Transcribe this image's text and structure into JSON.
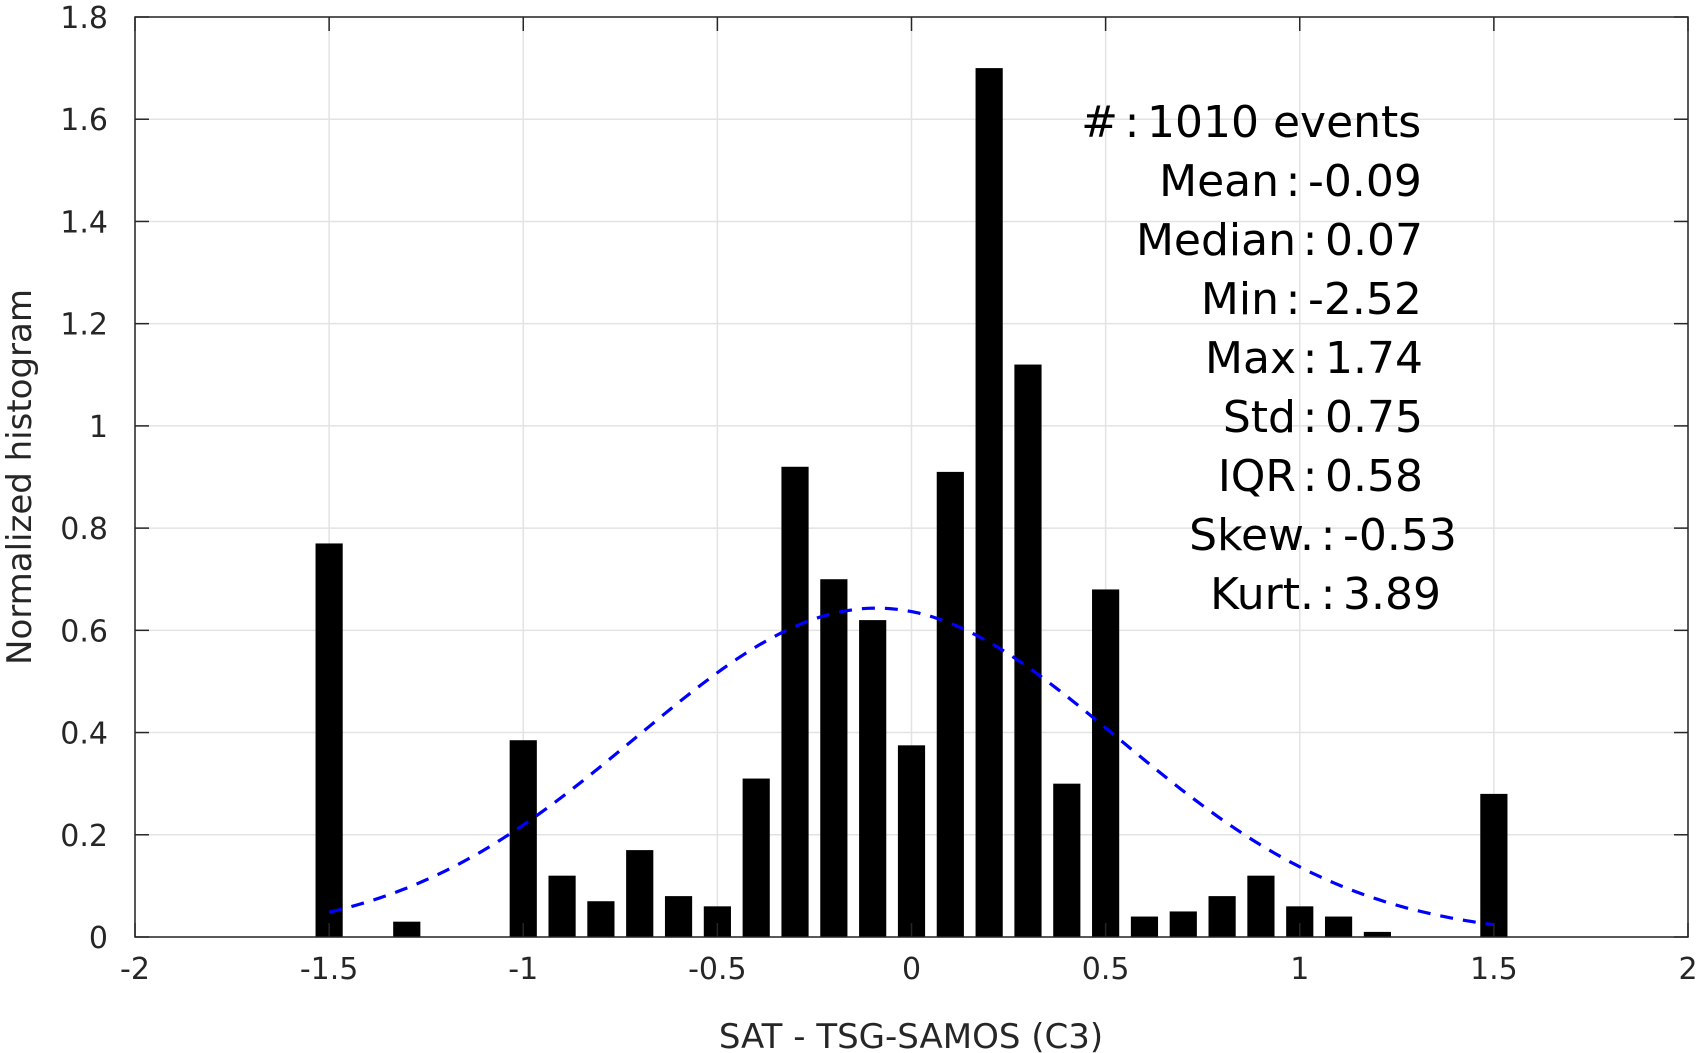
{
  "chart_data": {
    "type": "bar",
    "xlabel": "SAT - TSG-SAMOS (C3)",
    "ylabel": "Normalized histogram",
    "xlim": [
      -2,
      2
    ],
    "ylim": [
      0,
      1.8
    ],
    "xticks": [
      -2,
      -1.5,
      -1,
      -0.5,
      0,
      0.5,
      1,
      1.5,
      2
    ],
    "xtick_labels": [
      "-2",
      "-1.5",
      "-1",
      "-0.5",
      "0",
      "0.5",
      "1",
      "1.5",
      "2"
    ],
    "yticks": [
      0,
      0.2,
      0.4,
      0.6,
      0.8,
      1,
      1.2,
      1.4,
      1.6,
      1.8
    ],
    "ytick_labels": [
      "0",
      "0.2",
      "0.4",
      "0.6",
      "0.8",
      "1",
      "1.2",
      "1.4",
      "1.6",
      "1.8"
    ],
    "grid": true,
    "bar_color": "#000000",
    "bar_width": 0.07,
    "x": [
      -1.5,
      -1.3,
      -1.0,
      -0.9,
      -0.8,
      -0.7,
      -0.6,
      -0.5,
      -0.4,
      -0.3,
      -0.2,
      -0.1,
      0.0,
      0.1,
      0.2,
      0.3,
      0.4,
      0.5,
      0.6,
      0.7,
      0.8,
      0.9,
      1.0,
      1.1,
      1.2,
      1.5
    ],
    "values": [
      0.77,
      0.03,
      0.385,
      0.12,
      0.07,
      0.17,
      0.08,
      0.06,
      0.31,
      0.92,
      0.7,
      0.62,
      0.375,
      0.91,
      1.7,
      1.12,
      0.3,
      0.68,
      0.04,
      0.05,
      0.08,
      0.12,
      0.06,
      0.04,
      0.01,
      0.28
    ],
    "fit_curve": {
      "style": "dashed",
      "color": "#0000ff",
      "mean": -0.09,
      "std": 0.62,
      "x_range": [
        -1.5,
        1.5
      ]
    },
    "annotations": [
      {
        "label": "#",
        "sep": ":",
        "value": "1010 events"
      },
      {
        "label": "Mean",
        "sep": ":",
        "value": "-0.09"
      },
      {
        "label": "Median",
        "sep": ":",
        "value": "0.07"
      },
      {
        "label": "Min",
        "sep": ":",
        "value": "-2.52"
      },
      {
        "label": "Max",
        "sep": ":",
        "value": "1.74"
      },
      {
        "label": "Std",
        "sep": ":",
        "value": "0.75"
      },
      {
        "label": "IQR",
        "sep": ":",
        "value": "0.58"
      },
      {
        "label": "Skew.",
        "sep": ":",
        "value": "-0.53"
      },
      {
        "label": "Kurt.",
        "sep": ":",
        "value": "3.89"
      }
    ]
  }
}
